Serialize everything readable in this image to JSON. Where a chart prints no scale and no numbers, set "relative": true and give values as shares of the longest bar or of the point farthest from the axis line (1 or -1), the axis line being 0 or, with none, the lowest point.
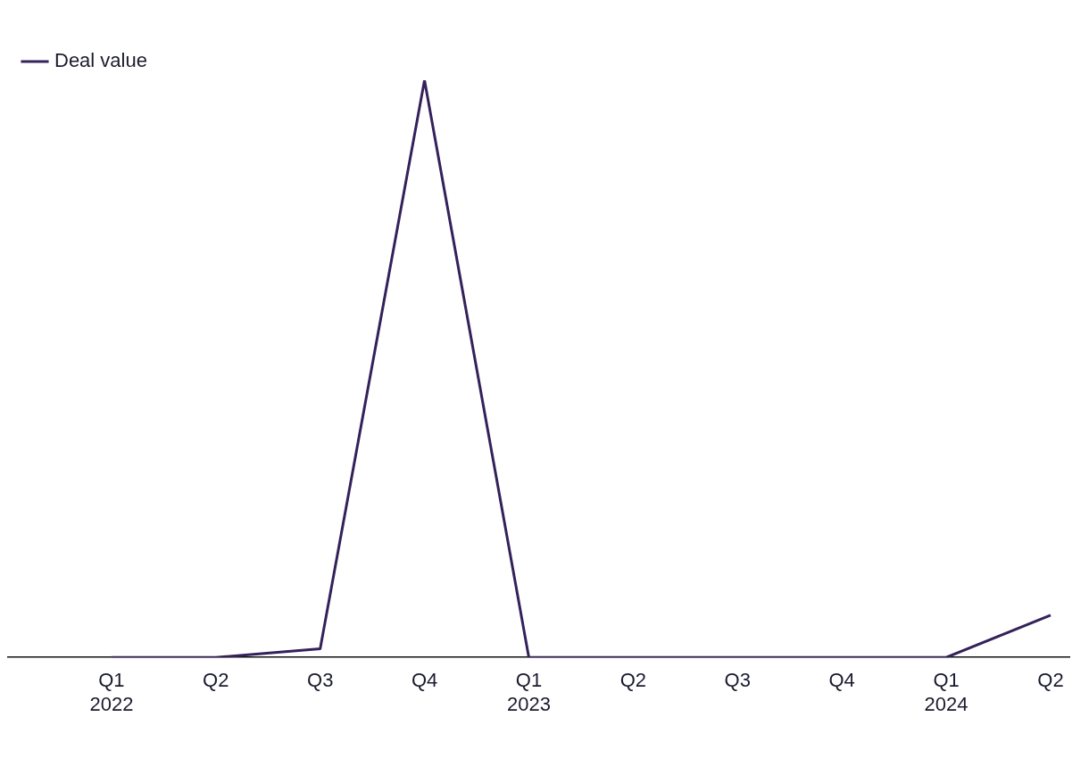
{
  "chart_data": {
    "type": "line",
    "relative": true,
    "categories": [
      "Q1\n2022",
      "Q2",
      "Q3",
      "Q4",
      "Q1\n2023",
      "Q2",
      "Q3",
      "Q4",
      "Q1\n2024",
      "Q2"
    ],
    "series": [
      {
        "name": "Deal value",
        "color": "#35215a",
        "values": [
          0,
          0,
          0.015,
          1,
          0,
          0,
          0,
          0,
          0,
          0.073
        ]
      }
    ],
    "legend": "top left",
    "grid": false,
    "marker": "none",
    "line_style": "solid"
  }
}
